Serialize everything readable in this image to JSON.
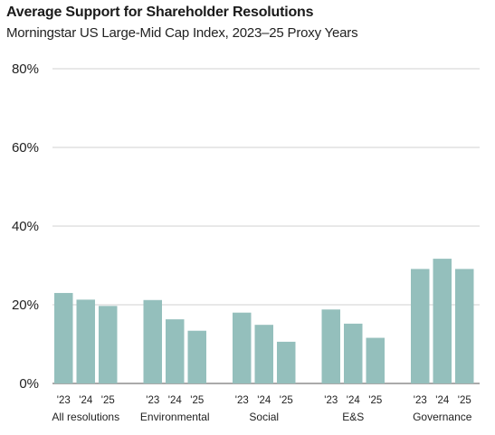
{
  "chart_data": {
    "type": "bar",
    "title": "Average Support for Shareholder Resolutions",
    "subtitle": "Morningstar US Large-Mid Cap Index, 2023–25 Proxy Years",
    "groups": [
      "All resolutions",
      "Environmental",
      "Social",
      "E&S",
      "Governance"
    ],
    "years": [
      "'23",
      "'24",
      "'25"
    ],
    "values": [
      [
        23.0,
        21.3,
        19.7
      ],
      [
        21.2,
        16.3,
        13.4
      ],
      [
        18.0,
        14.9,
        10.6
      ],
      [
        18.8,
        15.2,
        11.6
      ],
      [
        29.1,
        31.7,
        29.1
      ]
    ],
    "yticks": [
      "0%",
      "20%",
      "40%",
      "60%",
      "80%"
    ],
    "ylim": [
      0,
      80
    ],
    "grid": true,
    "bar_color": "#94bfbc"
  }
}
